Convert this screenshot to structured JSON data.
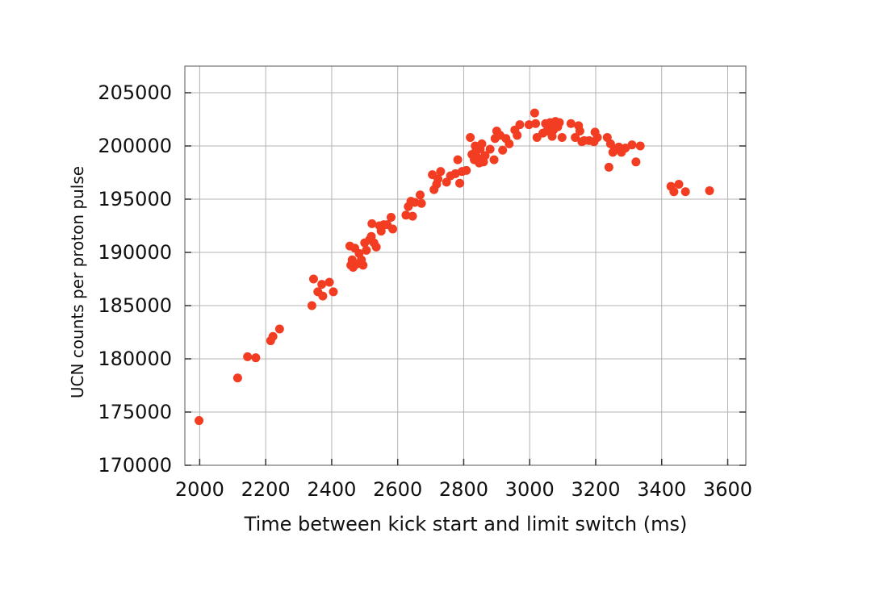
{
  "chart_data": {
    "type": "scatter",
    "title": "",
    "xlabel": "Time between kick start and limit switch (ms)",
    "ylabel": "UCN counts per proton pulse",
    "xlim": [
      1955,
      3655
    ],
    "ylim": [
      170000,
      207500
    ],
    "xticks": [
      2000,
      2200,
      2400,
      2600,
      2800,
      3000,
      3200,
      3400,
      3600
    ],
    "yticks": [
      170000,
      175000,
      180000,
      185000,
      190000,
      195000,
      200000,
      205000
    ],
    "grid": true,
    "legend": "none",
    "marker_color": "#f23d22",
    "series": [
      {
        "points": [
          [
            1998,
            174200
          ],
          [
            2115,
            178200
          ],
          [
            2145,
            180200
          ],
          [
            2170,
            180100
          ],
          [
            2215,
            181700
          ],
          [
            2222,
            182100
          ],
          [
            2242,
            182800
          ],
          [
            2340,
            185000
          ],
          [
            2345,
            187500
          ],
          [
            2358,
            186300
          ],
          [
            2370,
            187000
          ],
          [
            2373,
            185900
          ],
          [
            2393,
            187200
          ],
          [
            2405,
            186300
          ],
          [
            2455,
            190600
          ],
          [
            2458,
            188800
          ],
          [
            2462,
            189300
          ],
          [
            2465,
            188600
          ],
          [
            2470,
            190400
          ],
          [
            2475,
            188900
          ],
          [
            2483,
            189900
          ],
          [
            2490,
            189300
          ],
          [
            2495,
            188800
          ],
          [
            2500,
            190900
          ],
          [
            2505,
            190200
          ],
          [
            2515,
            191200
          ],
          [
            2520,
            191500
          ],
          [
            2522,
            192700
          ],
          [
            2528,
            190900
          ],
          [
            2535,
            190500
          ],
          [
            2545,
            192500
          ],
          [
            2550,
            192000
          ],
          [
            2558,
            192600
          ],
          [
            2568,
            192600
          ],
          [
            2580,
            193300
          ],
          [
            2585,
            192200
          ],
          [
            2625,
            193500
          ],
          [
            2632,
            194300
          ],
          [
            2640,
            194800
          ],
          [
            2645,
            193400
          ],
          [
            2652,
            194700
          ],
          [
            2668,
            195400
          ],
          [
            2672,
            194600
          ],
          [
            2705,
            197300
          ],
          [
            2710,
            195900
          ],
          [
            2718,
            196400
          ],
          [
            2722,
            196900
          ],
          [
            2730,
            197600
          ],
          [
            2748,
            196600
          ],
          [
            2760,
            197200
          ],
          [
            2775,
            197400
          ],
          [
            2782,
            198700
          ],
          [
            2788,
            196500
          ],
          [
            2795,
            197600
          ],
          [
            2808,
            197700
          ],
          [
            2820,
            200800
          ],
          [
            2825,
            199200
          ],
          [
            2832,
            198700
          ],
          [
            2835,
            200000
          ],
          [
            2838,
            199600
          ],
          [
            2842,
            198900
          ],
          [
            2847,
            198400
          ],
          [
            2850,
            199700
          ],
          [
            2855,
            200200
          ],
          [
            2860,
            198500
          ],
          [
            2865,
            199100
          ],
          [
            2880,
            199700
          ],
          [
            2892,
            198700
          ],
          [
            2895,
            200700
          ],
          [
            2900,
            201400
          ],
          [
            2910,
            201000
          ],
          [
            2918,
            199600
          ],
          [
            2928,
            200700
          ],
          [
            2938,
            200200
          ],
          [
            2955,
            201500
          ],
          [
            2962,
            201000
          ],
          [
            2970,
            202000
          ],
          [
            2998,
            202000
          ],
          [
            3015,
            203100
          ],
          [
            3018,
            202100
          ],
          [
            3022,
            200800
          ],
          [
            3040,
            201200
          ],
          [
            3048,
            202100
          ],
          [
            3052,
            201400
          ],
          [
            3058,
            201800
          ],
          [
            3062,
            202200
          ],
          [
            3068,
            200900
          ],
          [
            3072,
            201500
          ],
          [
            3078,
            202300
          ],
          [
            3085,
            201800
          ],
          [
            3090,
            202200
          ],
          [
            3098,
            200800
          ],
          [
            3125,
            202100
          ],
          [
            3138,
            200800
          ],
          [
            3148,
            201900
          ],
          [
            3152,
            201400
          ],
          [
            3158,
            200400
          ],
          [
            3165,
            200500
          ],
          [
            3180,
            200500
          ],
          [
            3195,
            200400
          ],
          [
            3198,
            201300
          ],
          [
            3205,
            200800
          ],
          [
            3235,
            200800
          ],
          [
            3240,
            198000
          ],
          [
            3245,
            200200
          ],
          [
            3252,
            199400
          ],
          [
            3258,
            199700
          ],
          [
            3270,
            199900
          ],
          [
            3278,
            199400
          ],
          [
            3290,
            199800
          ],
          [
            3310,
            200100
          ],
          [
            3322,
            198500
          ],
          [
            3335,
            200000
          ],
          [
            3428,
            196200
          ],
          [
            3437,
            195700
          ],
          [
            3452,
            196400
          ],
          [
            3472,
            195700
          ],
          [
            3545,
            195800
          ]
        ]
      }
    ]
  }
}
